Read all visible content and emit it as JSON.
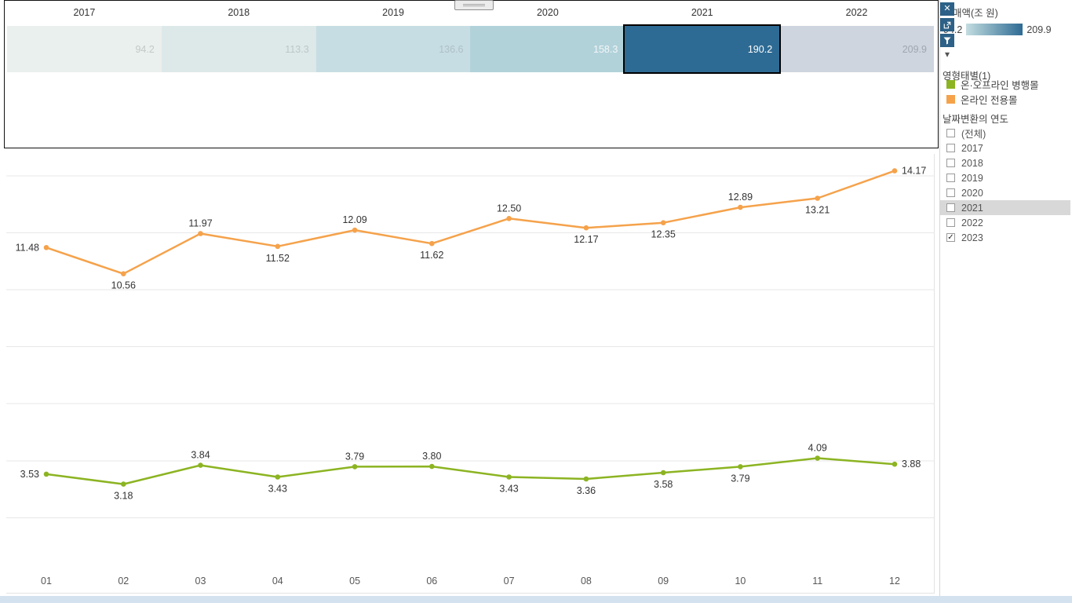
{
  "colors": {
    "toolbar_bg": "#2d6187",
    "highlight_row": "#d8d8d8",
    "grid_line": "#e7e7e7",
    "scrollbar": "#d3e2ee",
    "selected_cell": "#2e6b94"
  },
  "toolbar": {
    "close_glyph": "✕",
    "caret_glyph": "▾"
  },
  "heatmap": {
    "years": [
      {
        "label": "2017",
        "value": "94.2",
        "bg": "#eaf0ee",
        "fg": "#c3c9c6",
        "selected": false
      },
      {
        "label": "2018",
        "value": "113.3",
        "bg": "#dde8e9",
        "fg": "#bcc7c8",
        "selected": false
      },
      {
        "label": "2019",
        "value": "136.6",
        "bg": "#c6dde3",
        "fg": "#aec1c7",
        "selected": false
      },
      {
        "label": "2020",
        "value": "158.3",
        "bg": "#b2d2da",
        "fg": "#f2f6f7",
        "selected": false
      },
      {
        "label": "2021",
        "value": "190.2",
        "bg": "#2e6b94",
        "fg": "#ffffff",
        "selected": true
      },
      {
        "label": "2022",
        "value": "209.9",
        "bg": "#ced5de",
        "fg": "#9fa6af",
        "selected": false
      }
    ]
  },
  "legend": {
    "measure_title": "매액(조 원)",
    "gradient_min": "94.2",
    "gradient_max": "209.9",
    "gradient_from": "#c3dde0",
    "gradient_to": "#2e6b94",
    "series_title": "영형태별(1)",
    "series": [
      {
        "label": "온·오프라인 병행몰",
        "color": "#8cb422"
      },
      {
        "label": "온라인 전용몰",
        "color": "#f5a24b"
      }
    ]
  },
  "filter": {
    "title": "날짜변환의 연도",
    "check_glyph": "✓",
    "items": [
      {
        "label": "(전체)",
        "checked": false,
        "highlighted": false
      },
      {
        "label": "2017",
        "checked": false,
        "highlighted": false
      },
      {
        "label": "2018",
        "checked": false,
        "highlighted": false
      },
      {
        "label": "2019",
        "checked": false,
        "highlighted": false
      },
      {
        "label": "2020",
        "checked": false,
        "highlighted": false
      },
      {
        "label": "2021",
        "checked": false,
        "highlighted": true
      },
      {
        "label": "2022",
        "checked": false,
        "highlighted": false
      },
      {
        "label": "2023",
        "checked": true,
        "highlighted": false
      }
    ]
  },
  "chart_data": [
    {
      "type": "heatmap",
      "categories": [
        "2017",
        "2018",
        "2019",
        "2020",
        "2021",
        "2022"
      ],
      "values": [
        94.2,
        113.3,
        136.6,
        158.3,
        190.2,
        209.9
      ],
      "title": "",
      "selected_category": "2021",
      "color_range": [
        94.2,
        209.9
      ]
    },
    {
      "type": "line",
      "x": [
        "01",
        "02",
        "03",
        "04",
        "05",
        "06",
        "07",
        "08",
        "09",
        "10",
        "11",
        "12"
      ],
      "series": [
        {
          "name": "온라인 전용몰",
          "color": "#f5a24b",
          "values": [
            11.48,
            10.56,
            11.97,
            11.52,
            12.09,
            11.62,
            12.5,
            12.17,
            12.35,
            12.89,
            13.21,
            14.17
          ],
          "labels": [
            "11.48",
            "10.56",
            "11.97",
            "11.52",
            "12.09",
            "11.62",
            "12.50",
            "12.17",
            "12.35",
            "12.89",
            "13.21",
            "14.17"
          ],
          "label_pos": [
            "left",
            "below",
            "above",
            "below",
            "above",
            "below",
            "above",
            "below",
            "below",
            "above",
            "below",
            "right"
          ]
        },
        {
          "name": "온·오프라인 병행몰",
          "color": "#8cb422",
          "values": [
            3.53,
            3.18,
            3.84,
            3.43,
            3.79,
            3.8,
            3.43,
            3.36,
            3.58,
            3.79,
            4.09,
            3.88
          ],
          "labels": [
            "3.53",
            "3.18",
            "3.84",
            "3.43",
            "3.79",
            "3.80",
            "3.43",
            "3.36",
            "3.58",
            "3.79",
            "4.09",
            "3.88"
          ],
          "label_pos": [
            "left",
            "below",
            "above",
            "below",
            "above",
            "above",
            "below",
            "below",
            "below",
            "below",
            "above",
            "right"
          ]
        }
      ],
      "gridline_values": [
        2,
        4,
        6,
        8,
        10,
        12,
        14
      ],
      "ylim": [
        0,
        16
      ],
      "grid": true,
      "title": "",
      "xlabel": "",
      "ylabel": ""
    }
  ]
}
